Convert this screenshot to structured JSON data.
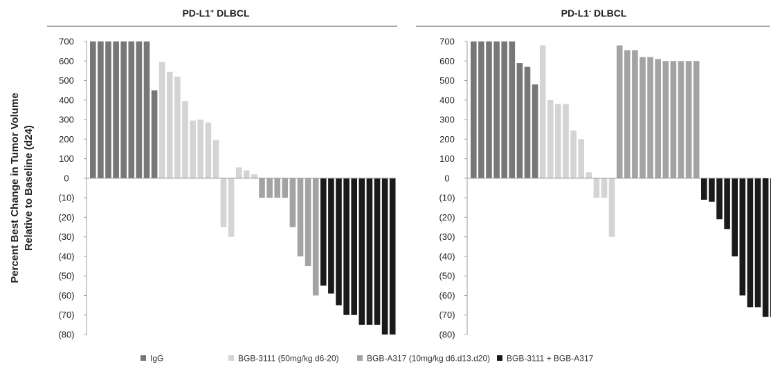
{
  "figure": {
    "ylabel_line1": "Percent Best Change in Tumor Volume",
    "ylabel_line2": "Relative to Baseline (d24)"
  },
  "colors": {
    "IgG": "#777777",
    "BGB-3111": "#d4d4d4",
    "BGB-A317": "#a3a3a3",
    "combo": "#1a1a1a"
  },
  "legend": [
    {
      "key": "IgG",
      "label": "IgG"
    },
    {
      "key": "BGB-3111",
      "label": "BGB-3111 (50mg/kg d6-20)"
    },
    {
      "key": "BGB-A317",
      "label": "BGB-A317 (10mg/kg d6.d13.d20)"
    },
    {
      "key": "combo",
      "label": "BGB-3111 + BGB-A317"
    }
  ],
  "chart_data": [
    {
      "type": "bar",
      "title_main": "PD-L1",
      "title_sup": "+",
      "title_rest": " DLBCL",
      "ylim": [
        -80,
        700
      ],
      "yticks": [
        {
          "v": 700,
          "label": "700"
        },
        {
          "v": 600,
          "label": "600"
        },
        {
          "v": 500,
          "label": "500"
        },
        {
          "v": 400,
          "label": "400"
        },
        {
          "v": 300,
          "label": "300"
        },
        {
          "v": 200,
          "label": "200"
        },
        {
          "v": 100,
          "label": "100"
        },
        {
          "v": 0,
          "label": "0"
        },
        {
          "v": -10,
          "label": "(10)"
        },
        {
          "v": -20,
          "label": "(20)"
        },
        {
          "v": -30,
          "label": "(30)"
        },
        {
          "v": -40,
          "label": "(40)"
        },
        {
          "v": -50,
          "label": "(50)"
        },
        {
          "v": -60,
          "label": "(60)"
        },
        {
          "v": -70,
          "label": "(70)"
        },
        {
          "v": -80,
          "label": "(80)"
        }
      ],
      "series": [
        {
          "group": "IgG",
          "values": [
            700,
            700,
            700,
            700,
            700,
            700,
            700,
            700,
            450
          ]
        },
        {
          "group": "BGB-3111",
          "values": [
            595,
            545,
            520,
            395,
            295,
            300,
            285,
            195,
            -25,
            -30,
            55,
            40,
            20
          ]
        },
        {
          "group": "BGB-A317",
          "values": [
            -10,
            -10,
            -10,
            -10,
            -25,
            -40,
            -45,
            -60
          ]
        },
        {
          "group": "combo",
          "values": [
            -55,
            -59,
            -65,
            -70,
            -70,
            -75,
            -75,
            -75,
            -80,
            -80
          ]
        }
      ]
    },
    {
      "type": "bar",
      "title_main": "PD-L1",
      "title_sup": "-",
      "title_rest": " DLBCL",
      "ylim": [
        -80,
        700
      ],
      "yticks": [
        {
          "v": 700,
          "label": "700"
        },
        {
          "v": 600,
          "label": "600"
        },
        {
          "v": 500,
          "label": "500"
        },
        {
          "v": 400,
          "label": "400"
        },
        {
          "v": 300,
          "label": "300"
        },
        {
          "v": 200,
          "label": "200"
        },
        {
          "v": 100,
          "label": "100"
        },
        {
          "v": 0,
          "label": "0"
        },
        {
          "v": -10,
          "label": "(10)"
        },
        {
          "v": -20,
          "label": "(20)"
        },
        {
          "v": -30,
          "label": "(30)"
        },
        {
          "v": -40,
          "label": "(40)"
        },
        {
          "v": -50,
          "label": "(50)"
        },
        {
          "v": -60,
          "label": "(60)"
        },
        {
          "v": -70,
          "label": "(70)"
        },
        {
          "v": -80,
          "label": "(80)"
        }
      ],
      "series": [
        {
          "group": "IgG",
          "values": [
            700,
            700,
            700,
            700,
            700,
            700,
            590,
            570,
            480
          ]
        },
        {
          "group": "BGB-3111",
          "values": [
            680,
            400,
            380,
            380,
            245,
            200,
            30,
            -10,
            -10,
            -30
          ]
        },
        {
          "group": "BGB-A317",
          "values": [
            680,
            655,
            655,
            620,
            620,
            610,
            600,
            600,
            600,
            600,
            600
          ]
        },
        {
          "group": "combo",
          "values": [
            -11,
            -12,
            -21,
            -26,
            -40,
            -60,
            -66,
            -66,
            -71,
            -71
          ]
        }
      ]
    }
  ]
}
